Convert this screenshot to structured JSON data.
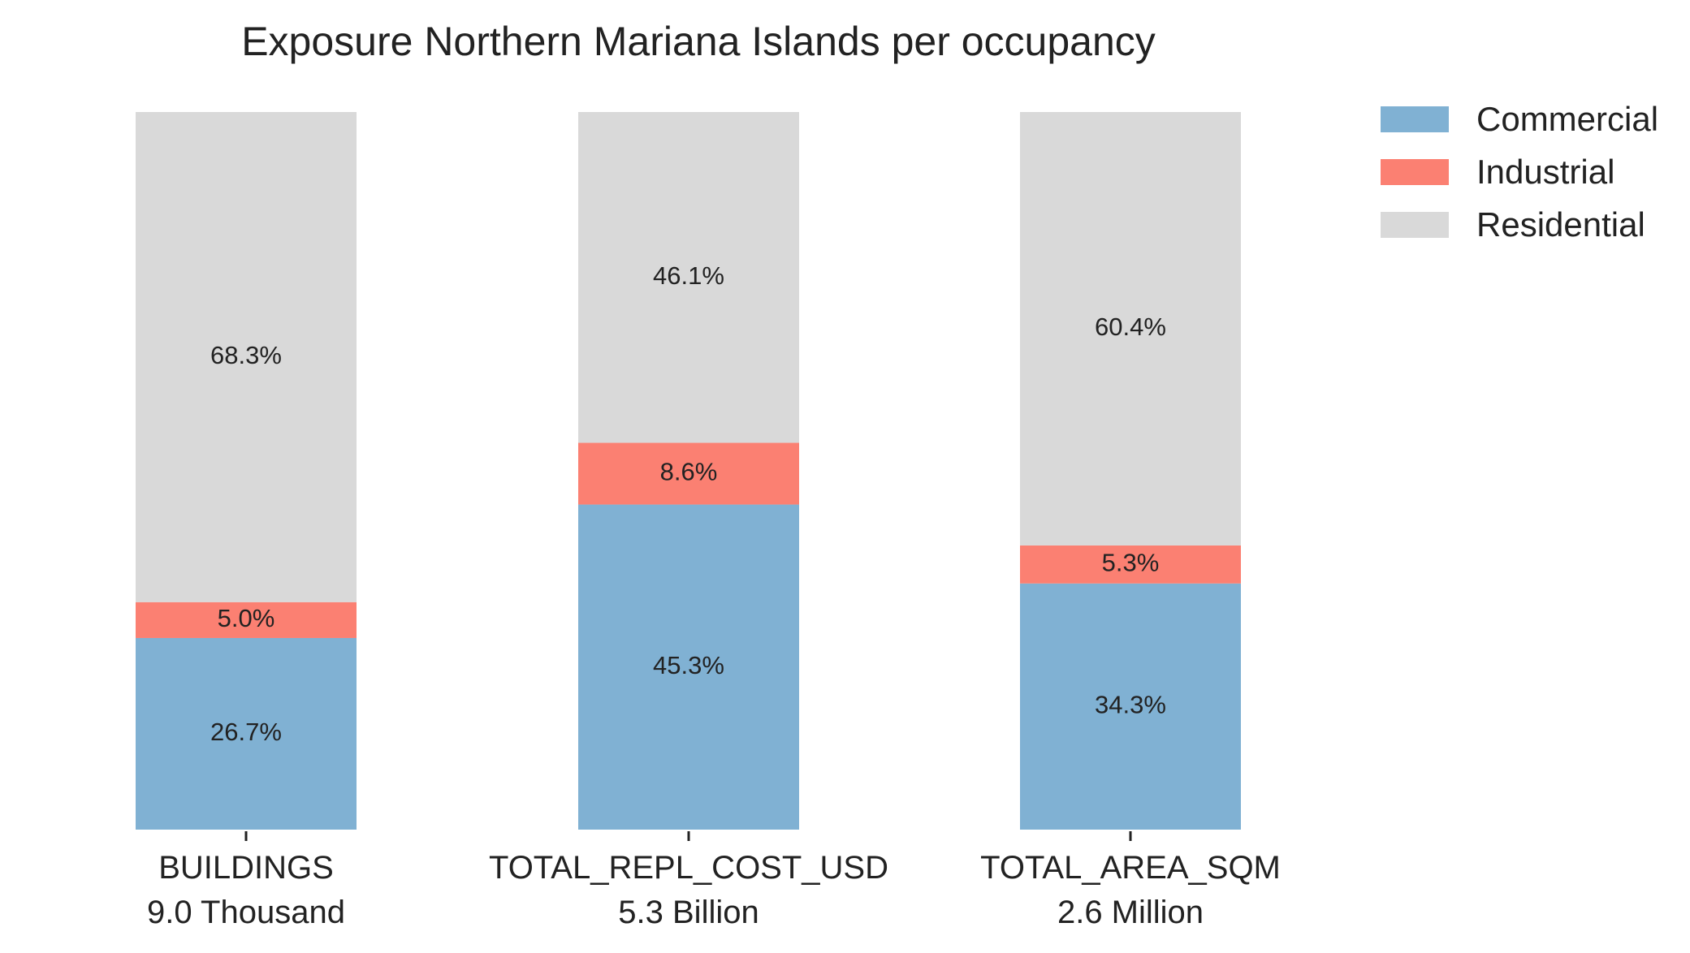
{
  "chart_data": {
    "type": "bar",
    "stacked": true,
    "normalized_percent": true,
    "title": "Exposure Northern Mariana Islands per occupancy",
    "categories": [
      "BUILDINGS",
      "TOTAL_REPL_COST_USD",
      "TOTAL_AREA_SQM"
    ],
    "category_totals": [
      "9.0 Thousand",
      "5.3 Billion",
      "2.6 Million"
    ],
    "series": [
      {
        "name": "Commercial",
        "color": "#80b1d3",
        "values": [
          26.7,
          45.3,
          34.3
        ],
        "labels": [
          "26.7%",
          "45.3%",
          "34.3%"
        ]
      },
      {
        "name": "Industrial",
        "color": "#fb8072",
        "values": [
          5.0,
          8.6,
          5.3
        ],
        "labels": [
          "5.0%",
          "8.6%",
          "5.3%"
        ]
      },
      {
        "name": "Residential",
        "color": "#d9d9d9",
        "values": [
          68.3,
          46.1,
          60.4
        ],
        "labels": [
          "68.3%",
          "46.1%",
          "60.4%"
        ]
      }
    ],
    "ylim": [
      0,
      100
    ],
    "grid": false,
    "legend_position": "top-right"
  }
}
